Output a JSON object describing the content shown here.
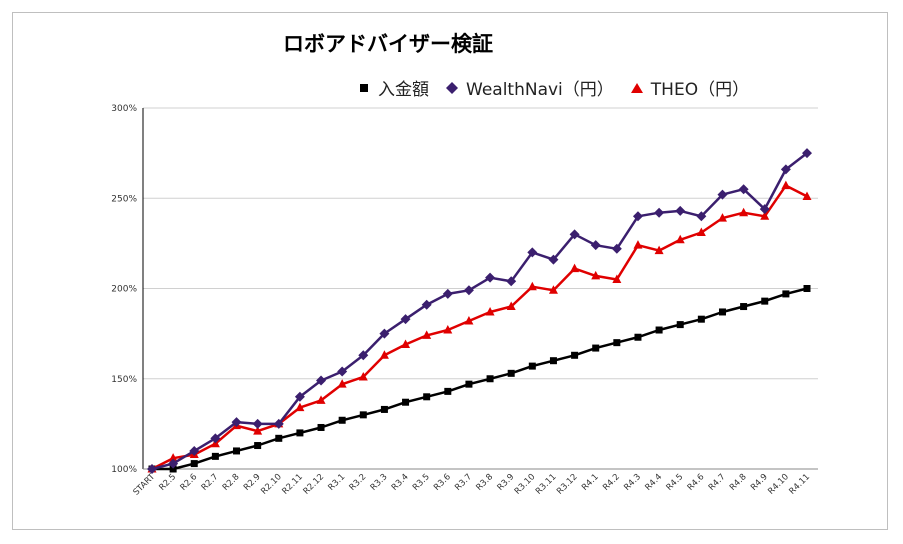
{
  "chart_data": {
    "type": "line",
    "title": "ロボアドバイザー検証",
    "categories": [
      "START",
      "R2.5",
      "R2.6",
      "R2.7",
      "R2.8",
      "R2.9",
      "R2.10",
      "R2.11",
      "R2.12",
      "R3.1",
      "R3.2",
      "R3.3",
      "R3.4",
      "R3.5",
      "R3.6",
      "R3.7",
      "R3.8",
      "R3.9",
      "R3.10",
      "R3.11",
      "R3.12",
      "R4.1",
      "R4.2",
      "R4.3",
      "R4.4",
      "R4.5",
      "R4.6",
      "R4.7",
      "R4.8",
      "R4.9",
      "R4.10",
      "R4.11"
    ],
    "series": [
      {
        "name": "入金額",
        "color": "#000000",
        "marker": "square",
        "values": [
          100,
          100,
          103,
          107,
          110,
          113,
          117,
          120,
          123,
          127,
          130,
          133,
          137,
          140,
          143,
          147,
          150,
          153,
          157,
          160,
          163,
          167,
          170,
          173,
          177,
          180,
          183,
          187,
          190,
          193,
          197,
          200
        ]
      },
      {
        "name": "WealthNavi（円）",
        "color": "#3b1f6e",
        "marker": "diamond",
        "values": [
          100,
          103,
          110,
          117,
          126,
          125,
          125,
          140,
          149,
          154,
          163,
          175,
          183,
          191,
          197,
          199,
          206,
          204,
          220,
          216,
          230,
          224,
          222,
          240,
          242,
          243,
          240,
          252,
          255,
          244,
          266,
          275
        ]
      },
      {
        "name": "THEO（円）",
        "color": "#e00000",
        "marker": "triangle",
        "values": [
          100,
          106,
          108,
          114,
          124,
          121,
          125,
          134,
          138,
          147,
          151,
          163,
          169,
          174,
          177,
          182,
          187,
          190,
          201,
          199,
          211,
          207,
          205,
          224,
          221,
          227,
          231,
          239,
          242,
          240,
          257,
          251
        ]
      }
    ],
    "ylim": [
      100,
      300
    ],
    "yticks": [
      "100%",
      "150%",
      "200%",
      "250%",
      "300%"
    ],
    "xlabel": "",
    "ylabel": "",
    "legend_position": "top",
    "grid": true
  }
}
